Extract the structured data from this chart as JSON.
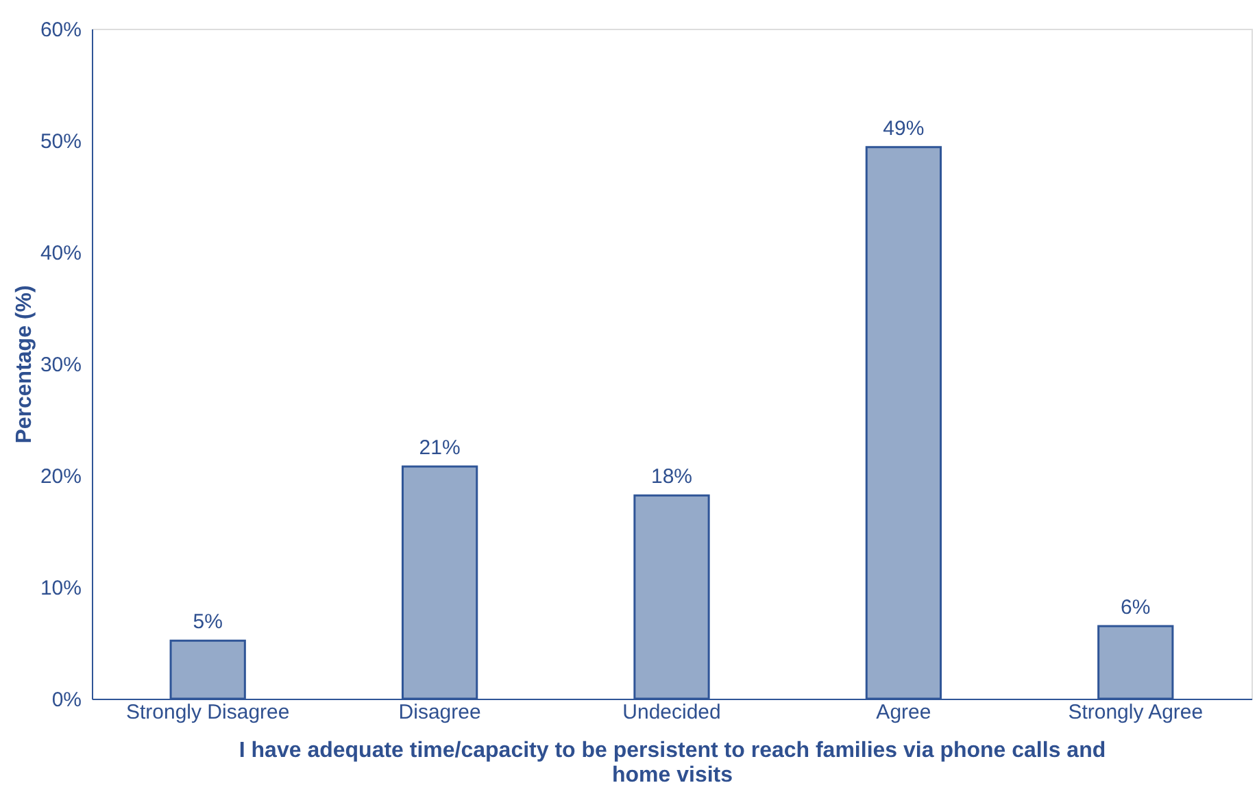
{
  "chart_data": {
    "type": "bar",
    "categories": [
      "Strongly Disagree",
      "Disagree",
      "Undecided",
      "Agree",
      "Strongly Agree"
    ],
    "values": [
      5.2,
      20.8,
      18.2,
      49.4,
      6.5
    ],
    "value_labels": [
      "5%",
      "21%",
      "18%",
      "49%",
      "6%"
    ],
    "color": "#95aac9",
    "xlabel": "I have adequate time/capacity to be persistent to reach families via phone calls and home visits",
    "ylabel": "Percentage (%)",
    "ylim": [
      0,
      60
    ],
    "yticks": [
      {
        "value": 0,
        "label": "0%"
      },
      {
        "value": 10,
        "label": "10%"
      },
      {
        "value": 20,
        "label": "20%"
      },
      {
        "value": 30,
        "label": "30%"
      },
      {
        "value": 40,
        "label": "40%"
      },
      {
        "value": 50,
        "label": "50%"
      },
      {
        "value": 60,
        "label": "60%"
      }
    ],
    "grid": false
  }
}
